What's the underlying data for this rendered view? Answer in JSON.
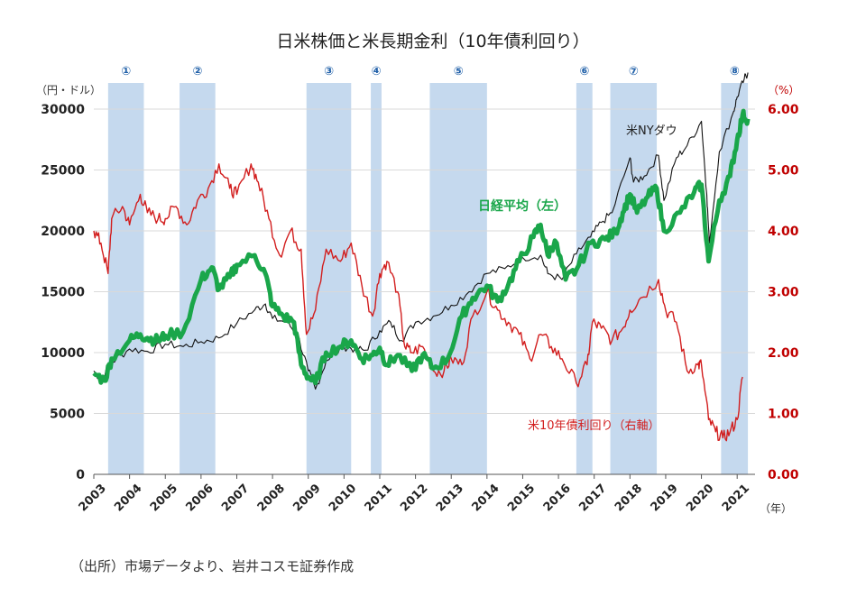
{
  "chart_data": {
    "type": "line",
    "title": "日米株価と米長期金利（10年債利回り）",
    "left_unit": "（円・ドル）",
    "right_unit": "（%）",
    "x_unit": "（年）",
    "xlim": [
      2003,
      2021.5
    ],
    "ylim_left": [
      0,
      30000
    ],
    "ylim_right": [
      0,
      6
    ],
    "left_ticks": [
      "30000",
      "25000",
      "20000",
      "15000",
      "10000",
      "5000",
      "0"
    ],
    "left_tick_values": [
      30000,
      25000,
      20000,
      15000,
      10000,
      5000,
      0
    ],
    "right_ticks": [
      "6.00",
      "5.00",
      "4.00",
      "3.00",
      "2.00",
      "1.00",
      "0.00"
    ],
    "right_tick_values": [
      6,
      5,
      4,
      3,
      2,
      1,
      0
    ],
    "x_ticks": [
      "2003",
      "2004",
      "2005",
      "2006",
      "2007",
      "2008",
      "2009",
      "2010",
      "2011",
      "2012",
      "2013",
      "2014",
      "2015",
      "2016",
      "2017",
      "2018",
      "2019",
      "2020",
      "2021"
    ],
    "x_tick_values": [
      2003,
      2004,
      2005,
      2006,
      2007,
      2008,
      2009,
      2010,
      2011,
      2012,
      2013,
      2014,
      2015,
      2016,
      2017,
      2018,
      2019,
      2020,
      2021
    ],
    "shaded_periods": [
      {
        "label": "①",
        "start": 2003.4,
        "end": 2004.4
      },
      {
        "label": "②",
        "start": 2005.4,
        "end": 2006.4
      },
      {
        "label": "③",
        "start": 2008.95,
        "end": 2010.2
      },
      {
        "label": "④",
        "start": 2010.75,
        "end": 2011.05
      },
      {
        "label": "⑤",
        "start": 2012.4,
        "end": 2014.0
      },
      {
        "label": "⑥",
        "start": 2016.5,
        "end": 2016.95
      },
      {
        "label": "⑦",
        "start": 2017.45,
        "end": 2018.75
      },
      {
        "label": "⑧",
        "start": 2020.55,
        "end": 2021.3
      }
    ],
    "series": [
      {
        "name": "米NYダウ",
        "axis": "left",
        "color": "#111111",
        "x": [
          2003.0,
          2003.2,
          2003.5,
          2004.0,
          2004.5,
          2005.0,
          2005.5,
          2006.0,
          2006.5,
          2007.0,
          2007.5,
          2007.8,
          2008.0,
          2008.4,
          2008.7,
          2009.0,
          2009.2,
          2009.5,
          2010.0,
          2010.3,
          2010.6,
          2011.0,
          2011.3,
          2011.6,
          2012.0,
          2012.5,
          2013.0,
          2013.5,
          2014.0,
          2014.5,
          2015.0,
          2015.5,
          2015.7,
          2016.1,
          2016.5,
          2016.9,
          2017.2,
          2017.5,
          2018.0,
          2018.1,
          2018.4,
          2018.8,
          2018.95,
          2019.3,
          2019.6,
          2020.0,
          2020.15,
          2020.22,
          2020.5,
          2020.9,
          2021.0,
          2021.2,
          2021.3
        ],
        "values": [
          8500,
          7800,
          9200,
          10300,
          10100,
          10700,
          10500,
          10900,
          11200,
          12400,
          13500,
          14000,
          12800,
          12500,
          11500,
          8500,
          7000,
          9300,
          10500,
          10300,
          10200,
          11800,
          12500,
          11000,
          12500,
          13000,
          13900,
          15000,
          16500,
          16900,
          17800,
          18000,
          16500,
          16000,
          18100,
          19500,
          20700,
          21500,
          26000,
          24000,
          24500,
          26200,
          22500,
          26000,
          27000,
          29000,
          23000,
          19000,
          26500,
          29800,
          31000,
          32500,
          33000
        ]
      },
      {
        "name": "日経平均（左）",
        "axis": "left",
        "color": "#1aa64a",
        "x": [
          2003.0,
          2003.3,
          2003.5,
          2004.0,
          2004.3,
          2004.5,
          2004.8,
          2005.0,
          2005.5,
          2006.0,
          2006.3,
          2006.5,
          2006.8,
          2007.0,
          2007.5,
          2007.8,
          2008.0,
          2008.3,
          2008.6,
          2008.8,
          2009.0,
          2009.2,
          2009.5,
          2009.9,
          2010.2,
          2010.5,
          2010.8,
          2011.0,
          2011.2,
          2011.5,
          2011.9,
          2012.2,
          2012.5,
          2012.9,
          2013.3,
          2013.6,
          2014.0,
          2014.3,
          2014.6,
          2014.9,
          2015.3,
          2015.5,
          2015.7,
          2015.9,
          2016.2,
          2016.5,
          2016.9,
          2017.3,
          2017.6,
          2017.8,
          2018.0,
          2018.2,
          2018.5,
          2018.75,
          2018.95,
          2019.4,
          2019.8,
          2020.0,
          2020.2,
          2020.5,
          2020.8,
          2021.0,
          2021.15,
          2021.3
        ],
        "values": [
          8300,
          7700,
          9500,
          11000,
          11500,
          11200,
          11000,
          11400,
          11700,
          16000,
          17000,
          15200,
          16200,
          17200,
          18000,
          16500,
          13800,
          13000,
          12500,
          9000,
          8000,
          7500,
          10000,
          10500,
          11000,
          9500,
          9800,
          10400,
          9000,
          9800,
          8500,
          9800,
          8700,
          9500,
          13000,
          14500,
          15500,
          14200,
          15600,
          17500,
          19500,
          20500,
          18000,
          19200,
          16000,
          16800,
          19000,
          19300,
          19900,
          21500,
          23000,
          21500,
          22800,
          23500,
          20000,
          21500,
          23200,
          23800,
          17500,
          22500,
          24500,
          27500,
          29500,
          29200
        ]
      },
      {
        "name": "米10年債利回り（右軸）",
        "axis": "right",
        "color": "#d21e1e",
        "x": [
          2003.0,
          2003.2,
          2003.4,
          2003.5,
          2003.8,
          2004.0,
          2004.3,
          2004.5,
          2004.8,
          2005.0,
          2005.3,
          2005.6,
          2005.9,
          2006.2,
          2006.5,
          2006.8,
          2007.0,
          2007.4,
          2007.6,
          2007.9,
          2008.2,
          2008.5,
          2008.8,
          2008.95,
          2009.2,
          2009.5,
          2009.9,
          2010.2,
          2010.5,
          2010.8,
          2011.0,
          2011.2,
          2011.5,
          2011.7,
          2011.9,
          2012.2,
          2012.5,
          2012.8,
          2013.0,
          2013.3,
          2013.6,
          2014.0,
          2014.3,
          2014.6,
          2014.9,
          2015.2,
          2015.5,
          2015.8,
          2016.1,
          2016.5,
          2016.8,
          2016.95,
          2017.2,
          2017.5,
          2017.8,
          2018.0,
          2018.3,
          2018.8,
          2019.0,
          2019.3,
          2019.6,
          2019.9,
          2020.0,
          2020.2,
          2020.4,
          2020.6,
          2020.8,
          2021.0,
          2021.15
        ],
        "values": [
          4.0,
          3.8,
          3.3,
          4.2,
          4.4,
          4.1,
          4.6,
          4.3,
          4.2,
          4.2,
          4.4,
          4.1,
          4.5,
          4.7,
          5.1,
          4.7,
          4.6,
          5.1,
          4.8,
          4.2,
          3.6,
          4.0,
          3.7,
          2.3,
          2.7,
          3.7,
          3.5,
          3.8,
          3.1,
          2.6,
          3.3,
          3.5,
          3.0,
          2.1,
          2.0,
          2.1,
          1.7,
          1.7,
          1.9,
          1.8,
          2.6,
          3.0,
          2.7,
          2.5,
          2.3,
          1.9,
          2.3,
          2.1,
          1.9,
          1.5,
          1.8,
          2.5,
          2.4,
          2.2,
          2.4,
          2.7,
          2.9,
          3.2,
          2.7,
          2.5,
          1.7,
          1.8,
          1.8,
          0.9,
          0.7,
          0.6,
          0.7,
          0.9,
          1.6
        ]
      }
    ],
    "annotations": {
      "dow": "米NYダウ",
      "nikkei": "日経平均（左）",
      "yield": "米10年債利回り（右軸）"
    }
  },
  "source": "（出所）市場データより、岩井コスモ証券作成"
}
